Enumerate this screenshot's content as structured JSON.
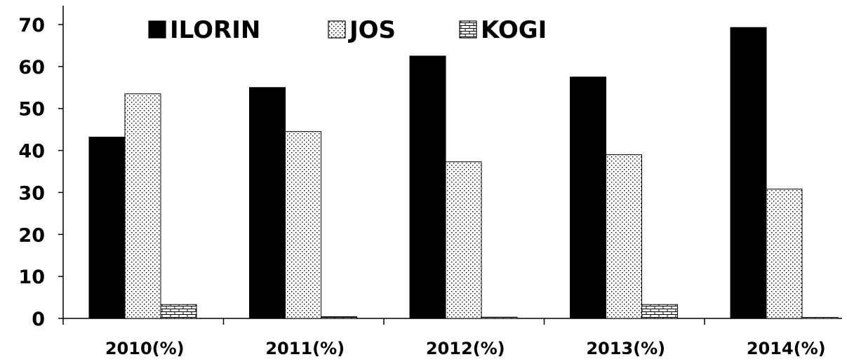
{
  "chart_data": {
    "type": "bar",
    "categories": [
      "2010(%)",
      "2011(%)",
      "2012(%)",
      "2013(%)",
      "2014(%)"
    ],
    "series": [
      {
        "name": "ILORIN",
        "values": [
          43.2,
          55.0,
          62.5,
          57.5,
          69.3
        ],
        "pattern": "solid",
        "color": "#000000"
      },
      {
        "name": "JOS",
        "values": [
          53.5,
          44.5,
          37.3,
          39.0,
          30.8
        ],
        "pattern": "dots",
        "color": "#ffffff"
      },
      {
        "name": "KOGI",
        "values": [
          3.3,
          0.4,
          0.3,
          3.3,
          0
        ],
        "pattern": "brick",
        "color": "#ffffff"
      }
    ],
    "yticks": [
      "0",
      "10",
      "20",
      "30",
      "40",
      "50",
      "60",
      "70"
    ],
    "ylim": [
      0,
      70
    ],
    "title": "",
    "xlabel": "",
    "ylabel": "",
    "legend_position": "top",
    "grid": false
  }
}
